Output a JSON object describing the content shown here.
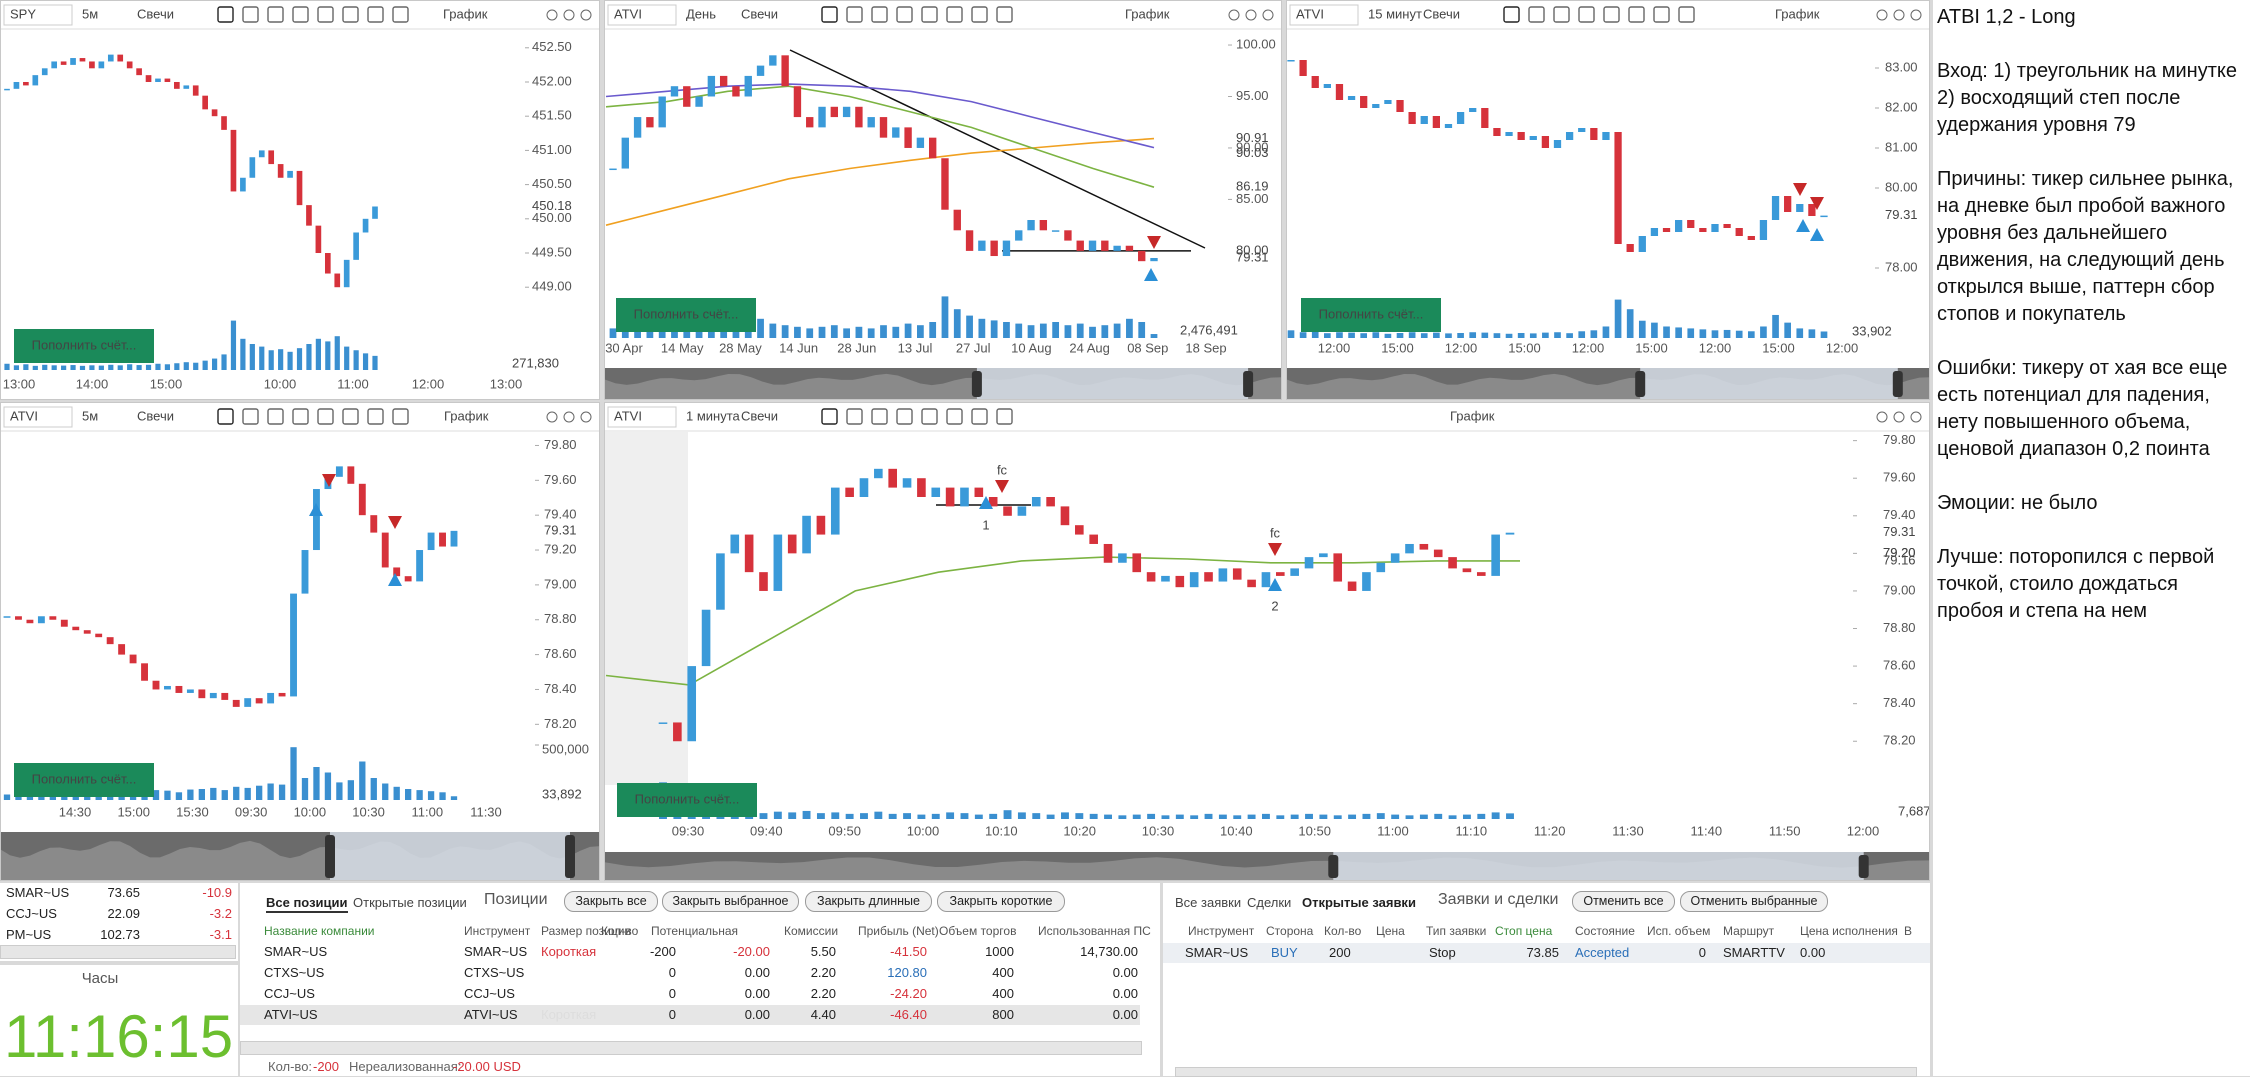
{
  "style": {
    "up_color": "#3a9ad9",
    "down_color": "#d6323b",
    "volume_color": "#3a8fd0",
    "button_color": "#1b8a5a",
    "clock_color": "#6cbf2f"
  },
  "deposit_button": "Пополнить счёт...",
  "charts": [
    {
      "symbol": "SPY",
      "interval": "5м",
      "style": "Свечи",
      "title": "График",
      "last_color": "#d6323b",
      "ylim": [
        448.74,
        452.76
      ],
      "yticks": [
        {
          "value": 452.5,
          "label": "452.50"
        },
        {
          "value": 452,
          "label": "452.00"
        },
        {
          "value": 451.5,
          "label": "451.50"
        },
        {
          "value": 451,
          "label": "451.00"
        },
        {
          "value": 450.5,
          "label": "450.50"
        },
        {
          "value": 450,
          "label": "450.00"
        },
        {
          "value": 449.5,
          "label": "449.50"
        },
        {
          "value": 449,
          "label": "449.00"
        }
      ],
      "times": [
        "13:00",
        "14:00",
        "15:00",
        "10:00",
        "11:00",
        "12:00",
        "13:00"
      ],
      "closes": [
        451.9,
        452.0,
        451.95,
        452.1,
        452.2,
        452.3,
        452.25,
        452.35,
        452.3,
        452.2,
        452.3,
        452.4,
        452.3,
        452.2,
        452.1,
        452.0,
        452.05,
        452.0,
        451.9,
        451.95,
        451.8,
        451.6,
        451.5,
        451.3,
        450.4,
        450.6,
        450.9,
        451.0,
        450.8,
        450.6,
        450.7,
        450.2,
        449.9,
        449.5,
        449.2,
        449.0,
        449.4,
        449.8,
        450.0,
        450.18
      ],
      "volumes": [
        120000,
        90000,
        110000,
        80000,
        100000,
        90000,
        85000,
        95000,
        80000,
        90000,
        85000,
        100000,
        90000,
        110000,
        95000,
        100000,
        120000,
        110000,
        130000,
        150000,
        140000,
        180000,
        220000,
        300000,
        950000,
        600000,
        500000,
        450000,
        380000,
        400000,
        350000,
        420000,
        500000,
        600000,
        550000,
        650000,
        450000,
        380000,
        320000,
        271830
      ],
      "volume_ylim": [
        0,
        1000000
      ],
      "volume_label": "271,830"
    },
    {
      "symbol": "ATVI",
      "interval": "День",
      "style": "Свечи",
      "title": "График",
      "last_color": "#3a9ad9",
      "ylim": [
        76.2,
        101.46
      ],
      "yticks": [
        {
          "value": 100,
          "label": "100.00"
        },
        {
          "value": 95,
          "label": "95.00"
        },
        {
          "value": 90,
          "label": "90.00"
        },
        {
          "value": 85,
          "label": "85.00"
        }
      ],
      "levels": [
        {
          "value": 80,
          "label": "80.00",
          "line": true
        }
      ],
      "times": [
        "30 Apr",
        "14 May",
        "28 May",
        "14 Jun",
        "28 Jun",
        "13 Jul",
        "27 Jul",
        "10 Aug",
        "24 Aug",
        "08 Sep",
        "18 Sep"
      ],
      "closes": [
        88,
        91,
        93,
        92,
        95,
        96,
        94,
        95,
        97,
        96,
        95,
        97,
        98,
        99,
        96,
        93,
        92,
        94,
        93,
        94,
        92,
        93,
        91,
        92,
        90,
        91,
        89,
        84,
        82,
        80,
        81,
        79.5,
        81,
        82,
        83,
        82,
        82,
        81,
        80,
        81,
        80,
        80.5,
        80,
        79,
        79.31
      ],
      "moving_averages": [
        {
          "color": "#f0a020",
          "values": [
            82.5,
            84,
            85.5,
            87,
            88,
            88.8,
            89.5,
            90,
            90.5,
            90.91
          ]
        },
        {
          "color": "#6a5acd",
          "values": [
            95,
            95.5,
            96,
            96.2,
            96,
            95.5,
            94.5,
            93,
            91.5,
            90.03
          ]
        },
        {
          "color": "#7cb342",
          "values": [
            94,
            94.5,
            95.5,
            96,
            95,
            93.5,
            92,
            90,
            88,
            86.19
          ]
        }
      ],
      "volumes": [
        6000000,
        7000000,
        5000000,
        6000000,
        8000000,
        5000000,
        6000000,
        7000000,
        9000000,
        10000000,
        8000000,
        7000000,
        12000000,
        9000000,
        8000000,
        7000000,
        6000000,
        7000000,
        8000000,
        6000000,
        7000000,
        6000000,
        8000000,
        7000000,
        9000000,
        8000000,
        10000000,
        26000000,
        18000000,
        14000000,
        12000000,
        11000000,
        10000000,
        9000000,
        8000000,
        9000000,
        10000000,
        8000000,
        9000000,
        7000000,
        8000000,
        9000000,
        12000000,
        10000000,
        2476491
      ],
      "volume_ylim": [
        0,
        30000000
      ],
      "volume_label": "2,476,491"
    },
    {
      "symbol": "ATVI",
      "interval": "15 минут",
      "style": "Свечи",
      "title": "График",
      "last_color": "#d6323b",
      "ylim": [
        77.45,
        83.95
      ],
      "yticks": [
        {
          "value": 83,
          "label": "83.00"
        },
        {
          "value": 82,
          "label": "82.00"
        },
        {
          "value": 81,
          "label": "81.00"
        },
        {
          "value": 80,
          "label": "80.00"
        },
        {
          "value": 78,
          "label": "78.00"
        }
      ],
      "times": [
        "12:00",
        "15:00",
        "12:00",
        "15:00",
        "12:00",
        "15:00",
        "12:00",
        "15:00",
        "12:00"
      ],
      "closes": [
        83.2,
        82.8,
        82.5,
        82.6,
        82.2,
        82.3,
        82.0,
        82.1,
        82.2,
        81.9,
        81.6,
        81.8,
        81.5,
        81.6,
        81.9,
        82.0,
        81.5,
        81.3,
        81.4,
        81.2,
        81.3,
        81.0,
        81.2,
        81.4,
        81.5,
        81.2,
        81.4,
        78.6,
        78.4,
        78.8,
        79.0,
        78.9,
        79.2,
        79.0,
        78.9,
        79.1,
        79.0,
        78.8,
        78.7,
        79.2,
        79.8,
        79.4,
        79.6,
        79.3,
        79.31
      ],
      "volumes": [
        40000,
        30000,
        35000,
        25000,
        30000,
        28000,
        25000,
        30000,
        22000,
        26000,
        30000,
        25000,
        28000,
        24000,
        26000,
        30000,
        28000,
        25000,
        22000,
        26000,
        24000,
        28000,
        30000,
        25000,
        35000,
        40000,
        60000,
        200000,
        150000,
        90000,
        80000,
        60000,
        55000,
        50000,
        45000,
        40000,
        42000,
        38000,
        35000,
        60000,
        120000,
        80000,
        50000,
        45000,
        33902
      ],
      "volume_ylim": [
        0,
        250000
      ],
      "volume_label": "33,902"
    },
    {
      "symbol": "ATVI",
      "interval": "5м",
      "style": "Свечи",
      "title": "График",
      "last_color": "#d6323b",
      "ylim": [
        78.11,
        79.86
      ],
      "yticks": [
        {
          "value": 79.8,
          "label": "79.80"
        },
        {
          "value": 79.6,
          "label": "79.60"
        },
        {
          "value": 79.4,
          "label": "79.40"
        },
        {
          "value": 79.2,
          "label": "79.20"
        },
        {
          "value": 79,
          "label": "79.00"
        },
        {
          "value": 78.8,
          "label": "78.80"
        },
        {
          "value": 78.6,
          "label": "78.60"
        },
        {
          "value": 78.4,
          "label": "78.40"
        },
        {
          "value": 78.2,
          "label": "78.20"
        }
      ],
      "times": [
        "14:30",
        "15:00",
        "15:30",
        "09:30",
        "10:00",
        "10:30",
        "11:00",
        "11:30"
      ],
      "closes": [
        78.82,
        78.8,
        78.78,
        78.82,
        78.8,
        78.76,
        78.74,
        78.72,
        78.7,
        78.66,
        78.6,
        78.55,
        78.45,
        78.4,
        78.42,
        78.38,
        78.4,
        78.35,
        78.38,
        78.34,
        78.3,
        78.35,
        78.32,
        78.38,
        78.36,
        78.95,
        79.2,
        79.55,
        79.62,
        79.68,
        79.58,
        79.4,
        79.3,
        79.1,
        79.05,
        79.02,
        79.2,
        79.3,
        79.22,
        79.31
      ],
      "volumes": [
        50000,
        40000,
        35000,
        45000,
        40000,
        38000,
        42000,
        45000,
        50000,
        55000,
        60000,
        70000,
        80000,
        90000,
        85000,
        70000,
        95000,
        100000,
        110000,
        90000,
        120000,
        110000,
        130000,
        150000,
        140000,
        480000,
        200000,
        300000,
        250000,
        160000,
        180000,
        350000,
        200000,
        150000,
        120000,
        100000,
        90000,
        80000,
        70000,
        33892
      ],
      "volume_ylim": [
        0,
        500000
      ],
      "volume_ticks": [
        {
          "value": 500000,
          "label": "500,000"
        }
      ],
      "volume_label": "33,892"
    },
    {
      "symbol": "ATVI",
      "interval": "1 минута",
      "style": "Свечи",
      "title": "График",
      "last_color": "#d6323b",
      "ylim": [
        78.18,
        79.83
      ],
      "yticks": [
        {
          "value": 79.8,
          "label": "79.80"
        },
        {
          "value": 79.6,
          "label": "79.60"
        },
        {
          "value": 79.4,
          "label": "79.40"
        },
        {
          "value": 79.2,
          "label": "79.20"
        },
        {
          "value": 79,
          "label": "79.00"
        },
        {
          "value": 78.8,
          "label": "78.80"
        },
        {
          "value": 78.6,
          "label": "78.60"
        },
        {
          "value": 78.4,
          "label": "78.40"
        },
        {
          "value": 78.2,
          "label": "78.20"
        }
      ],
      "times": [
        "09:30",
        "09:40",
        "09:50",
        "10:00",
        "10:10",
        "10:20",
        "10:30",
        "10:40",
        "10:50",
        "11:00",
        "11:10",
        "11:20",
        "11:30",
        "11:40",
        "11:50",
        "12:00"
      ],
      "closes": [
        78.3,
        78.2,
        78.6,
        78.9,
        79.2,
        79.3,
        79.1,
        79.0,
        79.3,
        79.2,
        79.4,
        79.3,
        79.55,
        79.5,
        79.6,
        79.65,
        79.55,
        79.6,
        79.5,
        79.55,
        79.45,
        79.55,
        79.5,
        79.45,
        79.4,
        79.45,
        79.5,
        79.45,
        79.35,
        79.3,
        79.25,
        79.15,
        79.2,
        79.1,
        79.05,
        79.08,
        79.02,
        79.1,
        79.05,
        79.12,
        79.06,
        79.02,
        79.1,
        79.08,
        79.12,
        79.18,
        79.2,
        79.05,
        79.0,
        79.1,
        79.15,
        79.2,
        79.25,
        79.22,
        79.18,
        79.12,
        79.1,
        79.08,
        79.3,
        79.31
      ],
      "moving_averages": [
        {
          "color": "#7cb342",
          "values": [
            78.55,
            78.5,
            78.75,
            79.0,
            79.1,
            79.16,
            79.18,
            79.17,
            79.15,
            79.15,
            79.16,
            79.16
          ]
        }
      ],
      "levels": [
        {
          "value": 79.2,
          "label": "79.20",
          "line": false
        }
      ],
      "annotations": [
        "fc",
        "1",
        "fc",
        "2"
      ],
      "volumes": [
        50000,
        12000,
        15000,
        10000,
        12000,
        9000,
        11000,
        8000,
        10000,
        9000,
        11000,
        8000,
        9000,
        7000,
        8000,
        10000,
        7000,
        8000,
        6000,
        7000,
        9000,
        8000,
        6000,
        7000,
        12000,
        9000,
        8000,
        6000,
        9000,
        8000,
        7000,
        6000,
        5000,
        6000,
        7000,
        5000,
        6000,
        5000,
        7000,
        6000,
        5000,
        6000,
        7000,
        5000,
        6000,
        7000,
        6000,
        5000,
        6000,
        7000,
        8000,
        6000,
        5000,
        6000,
        7000,
        5000,
        6000,
        7000,
        9000,
        7687
      ],
      "volume_ylim": [
        0,
        60000
      ],
      "volume_label": "7,687"
    }
  ],
  "notes": {
    "title": "ATBI 1,2 - Long",
    "paragraphs": [
      "Вход: 1) треугольник на минутке 2) восходящий степ после удержания уровня 79",
      "Причины: тикер сильнее рынка, на дневке был пробой важного уровня без дальнейшего движения, на следующий день открылся выше, паттерн сбор стопов и покупатель",
      "Ошибки: тикеру от хая все еще есть потенциал для падения, нету повышенного объема, ценовой диапазон 0,2 поинта",
      "Эмоции: не было",
      "Лучше: поторопился с первой точкой, стоило дождаться пробоя и степа на нем"
    ]
  },
  "watchlist": {
    "rows": [
      [
        "SMAR~US",
        "73.65",
        "-10.9"
      ],
      [
        "CCJ~US",
        "22.09",
        "-3.2"
      ],
      [
        "PM~US",
        "102.73",
        "-3.1"
      ]
    ]
  },
  "clock": {
    "title": "Часы",
    "time": "11:16:15"
  },
  "positions": {
    "tabs": [
      "Все позиции",
      "Открытые позиции"
    ],
    "title": "Позиции",
    "buttons": [
      "Закрыть все",
      "Закрыть выбранное",
      "Закрыть длинные",
      "Закрыть короткие"
    ],
    "columns": [
      "Название компании",
      "Инструмент",
      "Размер позиции",
      "Кол-во",
      "Потенциальная",
      "Комиссии",
      "Прибыль (Net)",
      "Объем торгов",
      "Использованная ПС"
    ],
    "rows": [
      [
        "SMAR~US",
        "SMAR~US",
        "Короткая",
        "-200",
        "-20.00",
        "5.50",
        "-41.50",
        "1000",
        "14,730.00"
      ],
      [
        "CTXS~US",
        "CTXS~US",
        null,
        "0",
        "0.00",
        "2.20",
        "120.80",
        "400",
        "0.00"
      ],
      [
        "CCJ~US",
        "CCJ~US",
        null,
        "0",
        "0.00",
        "2.20",
        "-24.20",
        "400",
        "0.00"
      ],
      [
        "ATVI~US",
        "ATVI~US",
        "Короткая",
        "0",
        "0.00",
        "4.40",
        "-46.40",
        "800",
        "0.00"
      ]
    ],
    "footer": {
      "qty_label": "Кол-во:",
      "qty": "-200",
      "unrealized_label": "Нереализованная:",
      "unrealized": "-20.00 USD"
    }
  },
  "orders": {
    "tabs": [
      "Все заявки",
      "Сделки",
      "Открытые заявки"
    ],
    "title": "Заявки и сделки",
    "buttons": [
      "Отменить все",
      "Отменить выбранные"
    ],
    "columns": [
      "Инструмент",
      "Сторона",
      "Кол-во",
      "Цена",
      "Тип заявки",
      "Стоп цена",
      "Состояние",
      "Исп. объем",
      "Маршрут",
      "Цена исполнения",
      "В"
    ],
    "rows": [
      [
        "SMAR~US",
        "BUY",
        "200",
        null,
        "Stop",
        "73.85",
        "Accepted",
        "0",
        "SMARTTV",
        "0.00",
        null
      ]
    ]
  }
}
